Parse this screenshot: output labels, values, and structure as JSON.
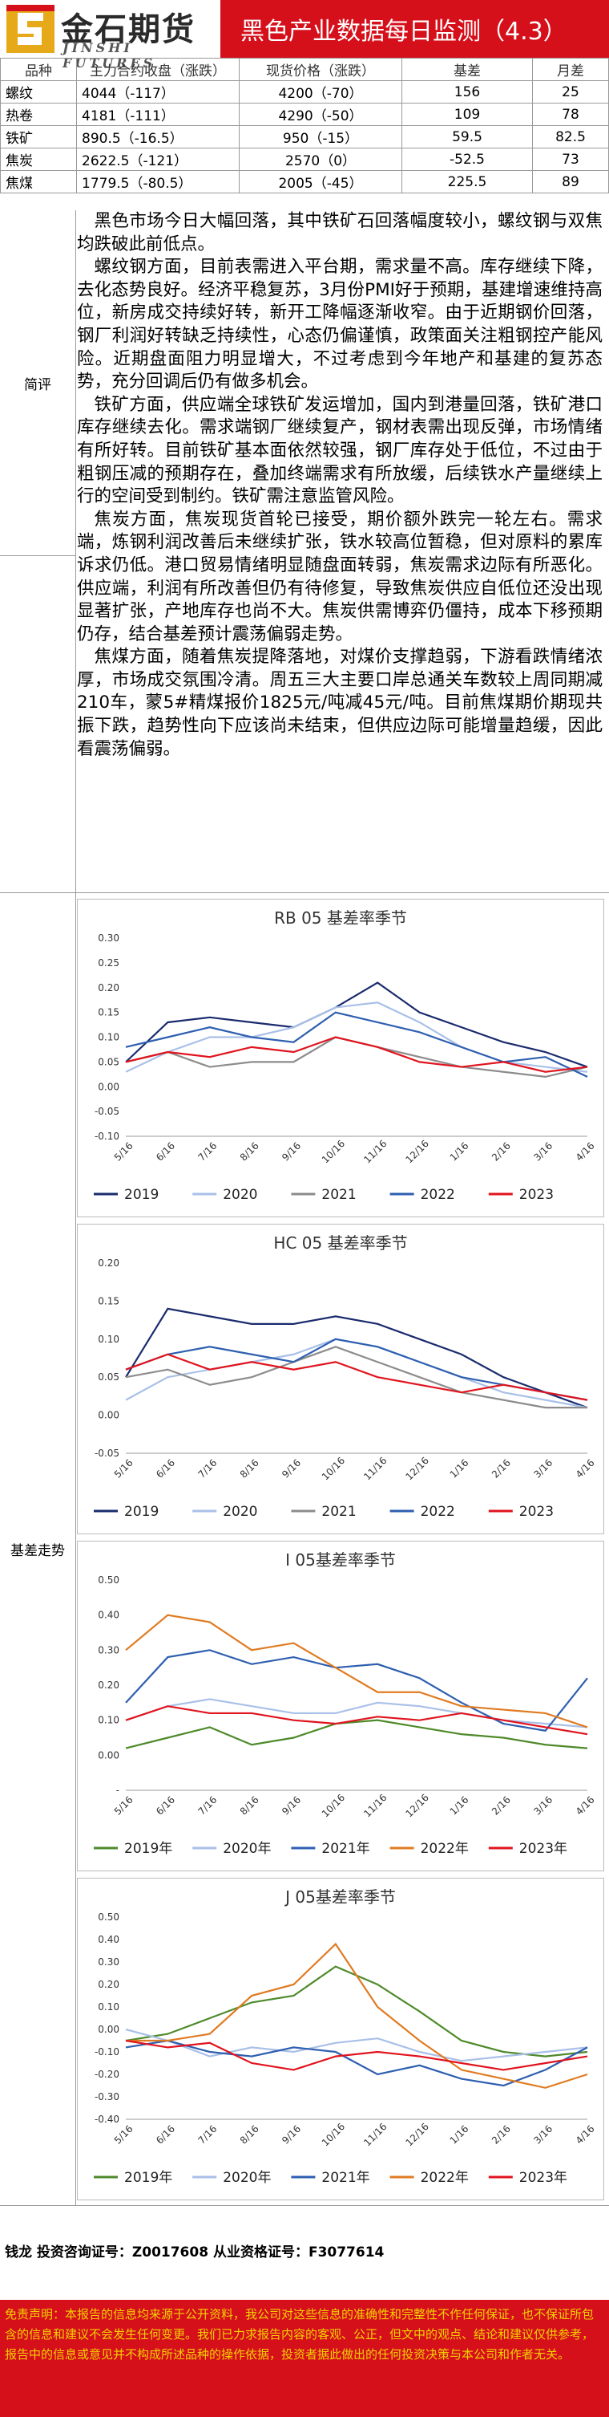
{
  "header": {
    "logo_cn": "金石期货",
    "logo_en": "JINSHI FUTURES",
    "title": "黑色产业数据每日监测（4.3）"
  },
  "table": {
    "headers": [
      "品种",
      "主力合约收盘（涨跌）",
      "现货价格（涨跌）",
      "基差",
      "月差"
    ],
    "rows": [
      [
        "螺纹",
        "4044（-117）",
        "4200（-70）",
        "156",
        "25"
      ],
      [
        "热卷",
        "4181（-111）",
        "4290（-50）",
        "109",
        "78"
      ],
      [
        "铁矿",
        "890.5（-16.5）",
        "950（-15）",
        "59.5",
        "82.5"
      ],
      [
        "焦炭",
        "2622.5（-121）",
        "2570（0）",
        "-52.5",
        "73"
      ],
      [
        "焦煤",
        "1779.5（-80.5）",
        "2005（-45）",
        "225.5",
        "89"
      ]
    ]
  },
  "labels": {
    "review": "简评",
    "basis": "基差走势"
  },
  "review": {
    "paragraphs": [
      "黑色市场今日大幅回落，其中铁矿石回落幅度较小，螺纹钢与双焦均跌破此前低点。",
      "螺纹钢方面，目前表需进入平台期，需求量不高。库存继续下降，去化态势良好。经济平稳复苏，3月份PMI好于预期，基建增速维持高位，新房成交持续好转，新开工降幅逐渐收窄。由于近期钢价回落，钢厂利润好转缺乏持续性，心态仍偏谨慎，政策面关注粗钢控产能风险。近期盘面阻力明显增大，不过考虑到今年地产和基建的复苏态势，充分回调后仍有做多机会。",
      "铁矿方面，供应端全球铁矿发运增加，国内到港量回落，铁矿港口库存继续去化。需求端钢厂继续复产，钢材表需出现反弹，市场情绪有所好转。目前铁矿基本面依然较强，钢厂库存处于低位，不过由于粗钢压减的预期存在，叠加终端需求有所放缓，后续铁水产量继续上行的空间受到制约。铁矿需注意监管风险。",
      "焦炭方面，焦炭现货首轮已接受，期价额外跌完一轮左右。需求端，炼钢利润改善后未继续扩张，铁水较高位暂稳，但对原料的累库诉求仍低。港口贸易情绪明显随盘面转弱，焦炭需求边际有所恶化。供应端，利润有所改善但仍有待修复，导致焦炭供应自低位还没出现显著扩张，产地库存也尚不大。焦炭供需博弈仍僵持，成本下移预期仍存，结合基差预计震荡偏弱走势。",
      "焦煤方面，随着焦炭提降落地，对煤价支撑趋弱，下游看跌情绪浓厚，市场成交氛围冷清。周五三大主要口岸总通关车数较上周同期减210车，蒙5#精煤报价1825元/吨减45元/吨。目前焦煤期价期现共振下跌，趋势性向下应该尚未结束，但供应边际可能增量趋缓，因此看震荡偏弱。"
    ]
  },
  "charts": {
    "legend_colors": {
      "2019": "#1a2b6d",
      "2020": "#a9c0e8",
      "2021": "#8c8c8c",
      "2022": "#2e5fb0",
      "2023": "#e0141e"
    },
    "legend_colors_b": {
      "2019": "#4f8a2b",
      "2020": "#a9c0e8",
      "2021": "#2e5fb0",
      "2022": "#e07b22",
      "2023": "#e0141e"
    }
  },
  "chart_data": [
    {
      "type": "line",
      "title": "RB 05 基差率季节",
      "x": [
        "5/16",
        "6/16",
        "7/16",
        "8/16",
        "9/16",
        "10/16",
        "11/16",
        "12/16",
        "1/16",
        "2/16",
        "3/16",
        "4/16"
      ],
      "ylim": [
        -0.1,
        0.3
      ],
      "yticks": [
        "-0.10",
        "-0.05",
        "0.00",
        "0.05",
        "0.10",
        "0.15",
        "0.20",
        "0.25",
        "0.30"
      ],
      "legend": "bottom",
      "series": [
        {
          "name": "2019",
          "values": [
            0.05,
            0.13,
            0.14,
            0.13,
            0.12,
            0.16,
            0.21,
            0.15,
            0.12,
            0.09,
            0.07,
            0.04
          ]
        },
        {
          "name": "2020",
          "values": [
            0.03,
            0.07,
            0.1,
            0.1,
            0.12,
            0.16,
            0.17,
            0.13,
            0.08,
            0.05,
            0.04,
            0.03
          ]
        },
        {
          "name": "2021",
          "values": [
            0.05,
            0.07,
            0.04,
            0.05,
            0.05,
            0.1,
            0.08,
            0.06,
            0.04,
            0.03,
            0.02,
            0.04
          ]
        },
        {
          "name": "2022",
          "values": [
            0.08,
            0.1,
            0.12,
            0.1,
            0.09,
            0.15,
            0.13,
            0.11,
            0.08,
            0.05,
            0.06,
            0.02
          ]
        },
        {
          "name": "2023",
          "values": [
            0.05,
            0.07,
            0.06,
            0.08,
            0.07,
            0.1,
            0.08,
            0.05,
            0.04,
            0.05,
            0.03,
            0.04
          ]
        }
      ]
    },
    {
      "type": "line",
      "title": "HC 05 基差率季节",
      "x": [
        "5/16",
        "6/16",
        "7/16",
        "8/16",
        "9/16",
        "10/16",
        "11/16",
        "12/16",
        "1/16",
        "2/16",
        "3/16",
        "4/16"
      ],
      "ylim": [
        -0.05,
        0.2
      ],
      "yticks": [
        "-0.05",
        "0.00",
        "0.05",
        "0.10",
        "0.15",
        "0.20"
      ],
      "legend": "bottom",
      "series": [
        {
          "name": "2019",
          "values": [
            0.05,
            0.14,
            0.13,
            0.12,
            0.12,
            0.13,
            0.12,
            0.1,
            0.08,
            0.05,
            0.03,
            0.01
          ]
        },
        {
          "name": "2020",
          "values": [
            0.02,
            0.05,
            0.06,
            0.07,
            0.08,
            0.1,
            0.09,
            0.07,
            0.05,
            0.03,
            0.02,
            0.01
          ]
        },
        {
          "name": "2021",
          "values": [
            0.05,
            0.06,
            0.04,
            0.05,
            0.07,
            0.09,
            0.07,
            0.05,
            0.03,
            0.02,
            0.01,
            0.01
          ]
        },
        {
          "name": "2022",
          "values": [
            0.06,
            0.08,
            0.09,
            0.08,
            0.07,
            0.1,
            0.09,
            0.07,
            0.05,
            0.04,
            0.03,
            0.02
          ]
        },
        {
          "name": "2023",
          "values": [
            0.06,
            0.08,
            0.06,
            0.07,
            0.06,
            0.07,
            0.05,
            0.04,
            0.03,
            0.04,
            0.03,
            0.02
          ]
        }
      ]
    },
    {
      "type": "line",
      "title": "I 05基差率季节",
      "x": [
        "5/16",
        "6/16",
        "7/16",
        "8/16",
        "9/16",
        "10/16",
        "11/16",
        "12/16",
        "1/16",
        "2/16",
        "3/16",
        "4/16"
      ],
      "ylim": [
        -0.1,
        0.5
      ],
      "yticks": [
        "-",
        "0.00",
        "0.10",
        "0.20",
        "0.30",
        "0.40",
        "0.50"
      ],
      "legend": "bottom",
      "series": [
        {
          "name": "2019年",
          "values": [
            0.02,
            0.05,
            0.08,
            0.03,
            0.05,
            0.09,
            0.1,
            0.08,
            0.06,
            0.05,
            0.03,
            0.02
          ]
        },
        {
          "name": "2020年",
          "values": [
            0.1,
            0.14,
            0.16,
            0.14,
            0.12,
            0.12,
            0.15,
            0.14,
            0.12,
            0.1,
            0.09,
            0.08
          ]
        },
        {
          "name": "2021年",
          "values": [
            0.15,
            0.28,
            0.3,
            0.26,
            0.28,
            0.25,
            0.26,
            0.22,
            0.15,
            0.09,
            0.07,
            0.22
          ]
        },
        {
          "name": "2022年",
          "values": [
            0.3,
            0.4,
            0.38,
            0.3,
            0.32,
            0.25,
            0.18,
            0.18,
            0.14,
            0.13,
            0.12,
            0.08
          ]
        },
        {
          "name": "2023年",
          "values": [
            0.1,
            0.14,
            0.12,
            0.12,
            0.1,
            0.09,
            0.11,
            0.1,
            0.12,
            0.1,
            0.08,
            0.06
          ]
        }
      ]
    },
    {
      "type": "line",
      "title": "J 05基差率季节",
      "x": [
        "5/16",
        "6/16",
        "7/16",
        "8/16",
        "9/16",
        "10/16",
        "11/16",
        "12/16",
        "1/16",
        "2/16",
        "3/16",
        "4/16"
      ],
      "ylim": [
        -0.4,
        0.5
      ],
      "yticks": [
        "-0.40",
        "-0.30",
        "-0.20",
        "-0.10",
        "0.00",
        "0.10",
        "0.20",
        "0.30",
        "0.40",
        "0.50"
      ],
      "legend": "bottom",
      "series": [
        {
          "name": "2019年",
          "values": [
            -0.05,
            -0.02,
            0.05,
            0.12,
            0.15,
            0.28,
            0.2,
            0.08,
            -0.05,
            -0.1,
            -0.12,
            -0.1
          ]
        },
        {
          "name": "2020年",
          "values": [
            0.0,
            -0.05,
            -0.12,
            -0.08,
            -0.1,
            -0.06,
            -0.04,
            -0.1,
            -0.14,
            -0.12,
            -0.1,
            -0.08
          ]
        },
        {
          "name": "2021年",
          "values": [
            -0.08,
            -0.05,
            -0.1,
            -0.12,
            -0.08,
            -0.1,
            -0.2,
            -0.16,
            -0.22,
            -0.25,
            -0.18,
            -0.08
          ]
        },
        {
          "name": "2022年",
          "values": [
            -0.05,
            -0.05,
            -0.02,
            0.15,
            0.2,
            0.38,
            0.1,
            -0.05,
            -0.18,
            -0.22,
            -0.26,
            -0.2
          ]
        },
        {
          "name": "2023年",
          "values": [
            -0.05,
            -0.08,
            -0.06,
            -0.15,
            -0.18,
            -0.12,
            -0.1,
            -0.12,
            -0.15,
            -0.18,
            -0.15,
            -0.12
          ]
        }
      ]
    }
  ],
  "footer": {
    "contact": "钱龙 投资咨询证号：Z0017608 从业资格证号：F3077614",
    "disclaimer": "免责声明：本报告的信息均来源于公开资料，我公司对这些信息的准确性和完整性不作任何保证，也不保证所包含的信息和建议不会发生任何变更。我们已力求报告内容的客观、公正，但文中的观点、结论和建议仅供参考，报告中的信息或意见并不构成所述品种的操作依据，投资者据此做出的任何投资决策与本公司和作者无关。"
  }
}
